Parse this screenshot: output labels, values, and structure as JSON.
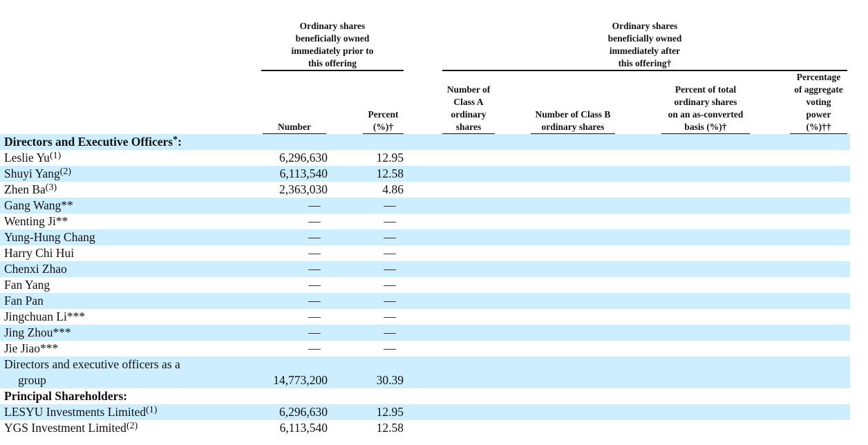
{
  "header": {
    "group_prior": "Ordinary shares beneficially owned immediately prior to this offering",
    "group_prior_lines": [
      "Ordinary shares",
      "beneficially owned",
      "immediately prior to",
      "this offering"
    ],
    "group_after_lines": [
      "Ordinary shares",
      "beneficially owned",
      "immediately after",
      "this offering†"
    ],
    "col_number": "Number",
    "col_percent_lines": [
      "Percent",
      "(%)†"
    ],
    "col_class_a_lines": [
      "Number of",
      "Class A",
      "ordinary",
      "shares"
    ],
    "col_class_b_lines": [
      "Number of Class B",
      "ordinary shares"
    ],
    "col_pct_total_lines": [
      "Percent of total",
      "ordinary shares",
      "on an as-converted",
      "basis (%)†"
    ],
    "col_voting_lines": [
      "Percentage",
      "of aggregate",
      "voting",
      "power",
      "(%)††"
    ]
  },
  "colors": {
    "row_band": "#cceeff"
  },
  "rows": [
    {
      "type": "section",
      "name": "Directors and Executive Officers",
      "note": "*",
      "suffix": ":"
    },
    {
      "name": "Leslie Yu",
      "note": "(1)",
      "number": "6,296,630",
      "percent": "12.95"
    },
    {
      "name": "Shuyi Yang",
      "note": "(2)",
      "number": "6,113,540",
      "percent": "12.58"
    },
    {
      "name": "Zhen Ba",
      "note": "(3)",
      "number": "2,363,030",
      "percent": "4.86"
    },
    {
      "name": "Gang Wang**",
      "number": "—",
      "percent": "—"
    },
    {
      "name": "Wenting Ji**",
      "number": "—",
      "percent": "—"
    },
    {
      "name": "Yung-Hung Chang",
      "number": "—",
      "percent": "—"
    },
    {
      "name": "Harry Chi Hui",
      "number": "—",
      "percent": "—"
    },
    {
      "name": "Chenxi Zhao",
      "number": "—",
      "percent": "—"
    },
    {
      "name": "Fan Yang",
      "number": "—",
      "percent": "—"
    },
    {
      "name": "Fan Pan",
      "number": "—",
      "percent": "—"
    },
    {
      "name": "Jingchuan Li***",
      "number": "—",
      "percent": "—"
    },
    {
      "name": "Jing Zhou***",
      "number": "—",
      "percent": "—"
    },
    {
      "name": "Jie Jiao***",
      "number": "—",
      "percent": "—"
    },
    {
      "type": "group",
      "name_line1": "Directors and executive officers as a",
      "name_line2": "group",
      "number": "14,773,200",
      "percent": "30.39"
    },
    {
      "type": "section",
      "name": "Principal Shareholders",
      "suffix": ":"
    },
    {
      "name": "LESYU Investments Limited",
      "note": "(1)",
      "number": "6,296,630",
      "percent": "12.95"
    },
    {
      "name": "YGS Investment Limited",
      "note": "(2)",
      "number": "6,113,540",
      "percent": "12.58"
    }
  ]
}
